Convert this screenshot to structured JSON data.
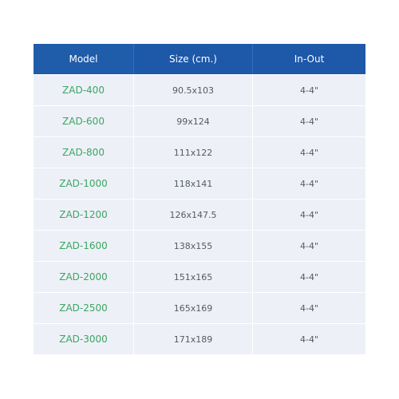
{
  "table": {
    "headers": [
      "Model",
      "Size (cm.)",
      "In-Out"
    ],
    "rows": [
      [
        "ZAD-400",
        "90.5x103",
        "4-4\""
      ],
      [
        "ZAD-600",
        "99x124",
        "4-4\""
      ],
      [
        "ZAD-800",
        "111x122",
        "4-4\""
      ],
      [
        "ZAD-1000",
        "118x141",
        "4-4\""
      ],
      [
        "ZAD-1200",
        "126x147.5",
        "4-4\""
      ],
      [
        "ZAD-1600",
        "138x155",
        "4-4\""
      ],
      [
        "ZAD-2000",
        "151x165",
        "4-4\""
      ],
      [
        "ZAD-2500",
        "165x169",
        "4-4\""
      ],
      [
        "ZAD-3000",
        "171x189",
        "4-4\""
      ]
    ]
  },
  "colors": {
    "header_bg": "#1e58a8",
    "row_bg": "#eef0f7",
    "model_text": "#3aa664",
    "value_text": "#555a63"
  }
}
